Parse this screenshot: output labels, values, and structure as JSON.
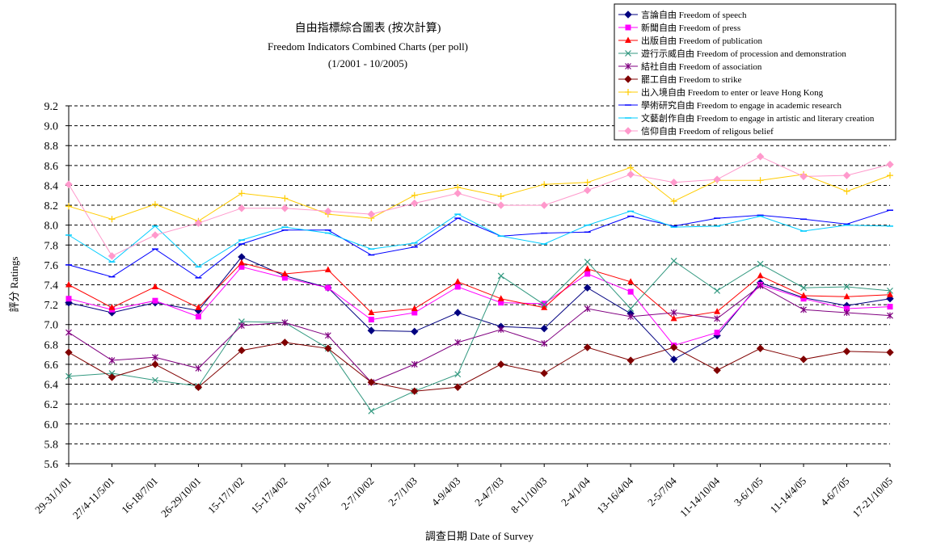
{
  "chart_data": {
    "type": "line",
    "title": "自由指標綜合圖表 (按次計算)",
    "subtitle": "Freedom Indicators Combined Charts (per poll)",
    "period": "(1/2001 - 10/2005)",
    "xlabel": "調查日期 Date of Survey",
    "ylabel": "評分 Ratings",
    "ylim": [
      5.6,
      9.2
    ],
    "yticks": [
      "5.6",
      "5.8",
      "6.0",
      "6.2",
      "6.4",
      "6.6",
      "6.8",
      "7.0",
      "7.2",
      "7.4",
      "7.6",
      "7.8",
      "8.0",
      "8.2",
      "8.4",
      "8.6",
      "8.8",
      "9.0",
      "9.2"
    ],
    "grid": "horizontal dashed",
    "legend_position": "top-right",
    "x_tick_labels": [
      "29-31/1/01",
      "27/4-11/5/01",
      "16-18/7/01",
      "26-29/10/01",
      "15-17/1/02",
      "15-17/4/02",
      "10-15/7/02",
      "2-7/10/02",
      "2-7/1/03",
      "4-9/4/03",
      "2-4/7/03",
      "8-11/10/03",
      "2-4/1/04",
      "13-16/4/04",
      "2-5/7/04",
      "11-14/10/04",
      "3-6/1/05",
      "11-14/4/05",
      "4-6/7/05",
      "17-21/10/05"
    ],
    "n_points": 20,
    "series": [
      {
        "name": "言論自由 Freedom of speech",
        "color": "#000080",
        "marker": "diamond",
        "values": [
          7.22,
          7.12,
          7.22,
          7.14,
          7.68,
          7.49,
          7.37,
          6.94,
          6.93,
          7.12,
          6.98,
          6.96,
          7.37,
          7.11,
          6.65,
          6.89,
          7.42,
          7.27,
          7.19,
          7.26
        ]
      },
      {
        "name": "新聞自由 Freedom of press",
        "color": "#ff00ff",
        "marker": "square",
        "values": [
          7.26,
          7.15,
          7.24,
          7.08,
          7.58,
          7.47,
          7.37,
          7.05,
          7.12,
          7.38,
          7.22,
          7.21,
          7.51,
          7.33,
          6.79,
          6.92,
          7.4,
          7.26,
          7.16,
          7.18
        ]
      },
      {
        "name": "出版自由 Freedom of publication",
        "color": "#ff0000",
        "marker": "triangle",
        "values": [
          7.4,
          7.17,
          7.38,
          7.17,
          7.62,
          7.51,
          7.55,
          7.12,
          7.16,
          7.43,
          7.26,
          7.17,
          7.56,
          7.43,
          7.06,
          7.13,
          7.49,
          7.29,
          7.28,
          7.3
        ]
      },
      {
        "name": "遊行示威自由 Freedom of procession and demonstration",
        "color": "#339980",
        "marker": "x",
        "values": [
          6.48,
          6.51,
          6.44,
          6.38,
          7.03,
          7.02,
          6.76,
          6.13,
          6.33,
          6.5,
          7.49,
          7.2,
          7.63,
          7.16,
          7.64,
          7.34,
          7.61,
          7.37,
          7.38,
          7.34
        ]
      },
      {
        "name": "結社自由 Freedom of association",
        "color": "#800080",
        "marker": "star",
        "values": [
          6.92,
          6.64,
          6.67,
          6.56,
          6.99,
          7.02,
          6.89,
          6.42,
          6.6,
          6.82,
          6.95,
          6.81,
          7.16,
          7.08,
          7.12,
          7.06,
          7.39,
          7.15,
          7.12,
          7.09
        ]
      },
      {
        "name": "罷工自由 Freedom to strike",
        "color": "#800000",
        "marker": "diamond",
        "values": [
          6.72,
          6.47,
          6.6,
          6.37,
          6.74,
          6.82,
          6.76,
          6.42,
          6.33,
          6.37,
          6.6,
          6.51,
          6.77,
          6.64,
          6.77,
          6.54,
          6.76,
          6.65,
          6.73,
          6.72
        ]
      },
      {
        "name": "出入境自由 Freedom to enter or leave Hong Kong",
        "color": "#ffcc00",
        "marker": "plus",
        "values": [
          8.19,
          8.06,
          8.21,
          8.04,
          8.32,
          8.27,
          8.11,
          8.07,
          8.3,
          8.38,
          8.29,
          8.41,
          8.43,
          8.58,
          8.24,
          8.45,
          8.45,
          8.51,
          8.34,
          8.5
        ]
      },
      {
        "name": "學術研究自由 Freedom to engage in academic research",
        "color": "#0000ff",
        "marker": "dash",
        "values": [
          7.6,
          7.48,
          7.76,
          7.47,
          7.81,
          7.95,
          7.95,
          7.7,
          7.78,
          8.07,
          7.89,
          7.92,
          7.93,
          8.09,
          7.99,
          8.07,
          8.1,
          8.06,
          8.01,
          8.15
        ]
      },
      {
        "name": "文藝創作自由 Freedom to engage in artistic and literary creation",
        "color": "#00ccff",
        "marker": "dash",
        "values": [
          7.9,
          7.63,
          7.99,
          7.58,
          7.85,
          7.98,
          7.92,
          7.76,
          7.82,
          8.11,
          7.89,
          7.81,
          8.0,
          8.14,
          7.98,
          7.99,
          8.09,
          7.94,
          8.0,
          7.99
        ]
      },
      {
        "name": "信仰自由 Freedom of religous belief",
        "color": "#ff99cc",
        "marker": "diamond",
        "values": [
          8.41,
          7.69,
          7.9,
          8.02,
          8.17,
          8.17,
          8.14,
          8.11,
          8.22,
          8.32,
          8.2,
          8.2,
          8.35,
          8.51,
          8.43,
          8.46,
          8.69,
          8.49,
          8.5,
          8.61
        ]
      }
    ]
  }
}
